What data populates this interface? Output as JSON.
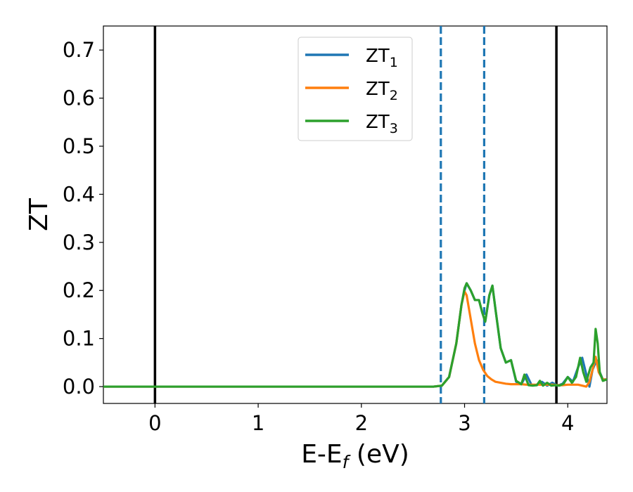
{
  "chart_data": {
    "type": "line",
    "xlabel": "E-E",
    "xlabel_sub": "f",
    "xlabel_unit": " (eV)",
    "ylabel": "ZT",
    "xlim": [
      -0.5,
      4.38
    ],
    "ylim": [
      -0.035,
      0.75
    ],
    "xticks": [
      0,
      1,
      2,
      3,
      4
    ],
    "xtick_labels": [
      "0",
      "1",
      "2",
      "3",
      "4"
    ],
    "yticks": [
      0.0,
      0.1,
      0.2,
      0.3,
      0.4,
      0.5,
      0.6,
      0.7
    ],
    "ytick_labels": [
      "0.0",
      "0.1",
      "0.2",
      "0.3",
      "0.4",
      "0.5",
      "0.6",
      "0.7"
    ],
    "grid": false,
    "legend_position": "top-center",
    "vlines": [
      {
        "x": 0.0,
        "color": "#000000",
        "style": "solid"
      },
      {
        "x": 2.77,
        "color": "#1f77b4",
        "style": "dashed"
      },
      {
        "x": 3.19,
        "color": "#1f77b4",
        "style": "dashed"
      },
      {
        "x": 3.89,
        "color": "#000000",
        "style": "solid"
      }
    ],
    "series": [
      {
        "name": "ZT",
        "sub": "1",
        "color": "#1f77b4",
        "x": [
          -0.5,
          2.7,
          2.78,
          2.85,
          2.92,
          2.97,
          3.0,
          3.02,
          3.06,
          3.1,
          3.14,
          3.17,
          3.2,
          3.24,
          3.27,
          3.3,
          3.35,
          3.4,
          3.45,
          3.5,
          3.55,
          3.6,
          3.65,
          3.7,
          3.75,
          3.8,
          3.85,
          3.9,
          3.95,
          4.0,
          4.05,
          4.1,
          4.14,
          4.18,
          4.21,
          4.24,
          4.28,
          4.31,
          4.34,
          4.38
        ],
        "y": [
          0.0,
          0.0,
          0.002,
          0.02,
          0.09,
          0.17,
          0.2,
          0.215,
          0.2,
          0.18,
          0.18,
          0.155,
          0.135,
          0.19,
          0.21,
          0.16,
          0.08,
          0.05,
          0.055,
          0.01,
          0.005,
          0.025,
          0.003,
          0.003,
          0.01,
          0.002,
          0.008,
          0.002,
          0.006,
          0.02,
          0.01,
          0.04,
          0.06,
          0.025,
          0.0,
          0.035,
          0.055,
          0.03,
          0.015,
          0.015
        ]
      },
      {
        "name": "ZT",
        "sub": "2",
        "color": "#ff7f0e",
        "x": [
          -0.5,
          2.7,
          2.78,
          2.85,
          2.92,
          2.97,
          3.0,
          3.02,
          3.06,
          3.1,
          3.14,
          3.18,
          3.22,
          3.26,
          3.3,
          3.35,
          3.4,
          3.45,
          3.5,
          3.55,
          3.6,
          3.65,
          3.7,
          3.75,
          3.8,
          3.85,
          3.9,
          3.95,
          4.0,
          4.05,
          4.1,
          4.14,
          4.18,
          4.21,
          4.24,
          4.27,
          4.3,
          4.34,
          4.38
        ],
        "y": [
          0.0,
          0.0,
          0.002,
          0.02,
          0.09,
          0.17,
          0.198,
          0.19,
          0.14,
          0.09,
          0.055,
          0.035,
          0.022,
          0.015,
          0.01,
          0.008,
          0.006,
          0.005,
          0.005,
          0.005,
          0.004,
          0.004,
          0.004,
          0.004,
          0.004,
          0.004,
          0.003,
          0.003,
          0.004,
          0.004,
          0.004,
          0.002,
          0.0,
          0.01,
          0.035,
          0.062,
          0.03,
          0.015,
          0.015
        ]
      },
      {
        "name": "ZT",
        "sub": "3",
        "color": "#2ca02c",
        "x": [
          -0.5,
          2.7,
          2.78,
          2.85,
          2.92,
          2.97,
          3.0,
          3.02,
          3.06,
          3.1,
          3.14,
          3.17,
          3.2,
          3.24,
          3.27,
          3.3,
          3.35,
          3.4,
          3.45,
          3.5,
          3.55,
          3.58,
          3.62,
          3.66,
          3.7,
          3.73,
          3.76,
          3.8,
          3.84,
          3.88,
          3.92,
          3.96,
          4.0,
          4.04,
          4.08,
          4.12,
          4.15,
          4.18,
          4.22,
          4.25,
          4.27,
          4.29,
          4.31,
          4.34,
          4.38
        ],
        "y": [
          0.0,
          0.0,
          0.002,
          0.02,
          0.09,
          0.17,
          0.205,
          0.215,
          0.2,
          0.18,
          0.18,
          0.155,
          0.135,
          0.19,
          0.21,
          0.16,
          0.08,
          0.05,
          0.055,
          0.012,
          0.005,
          0.025,
          0.003,
          0.002,
          0.003,
          0.012,
          0.002,
          0.008,
          0.002,
          0.003,
          0.002,
          0.006,
          0.02,
          0.008,
          0.02,
          0.06,
          0.03,
          0.01,
          0.04,
          0.05,
          0.12,
          0.09,
          0.03,
          0.012,
          0.015
        ]
      }
    ]
  }
}
